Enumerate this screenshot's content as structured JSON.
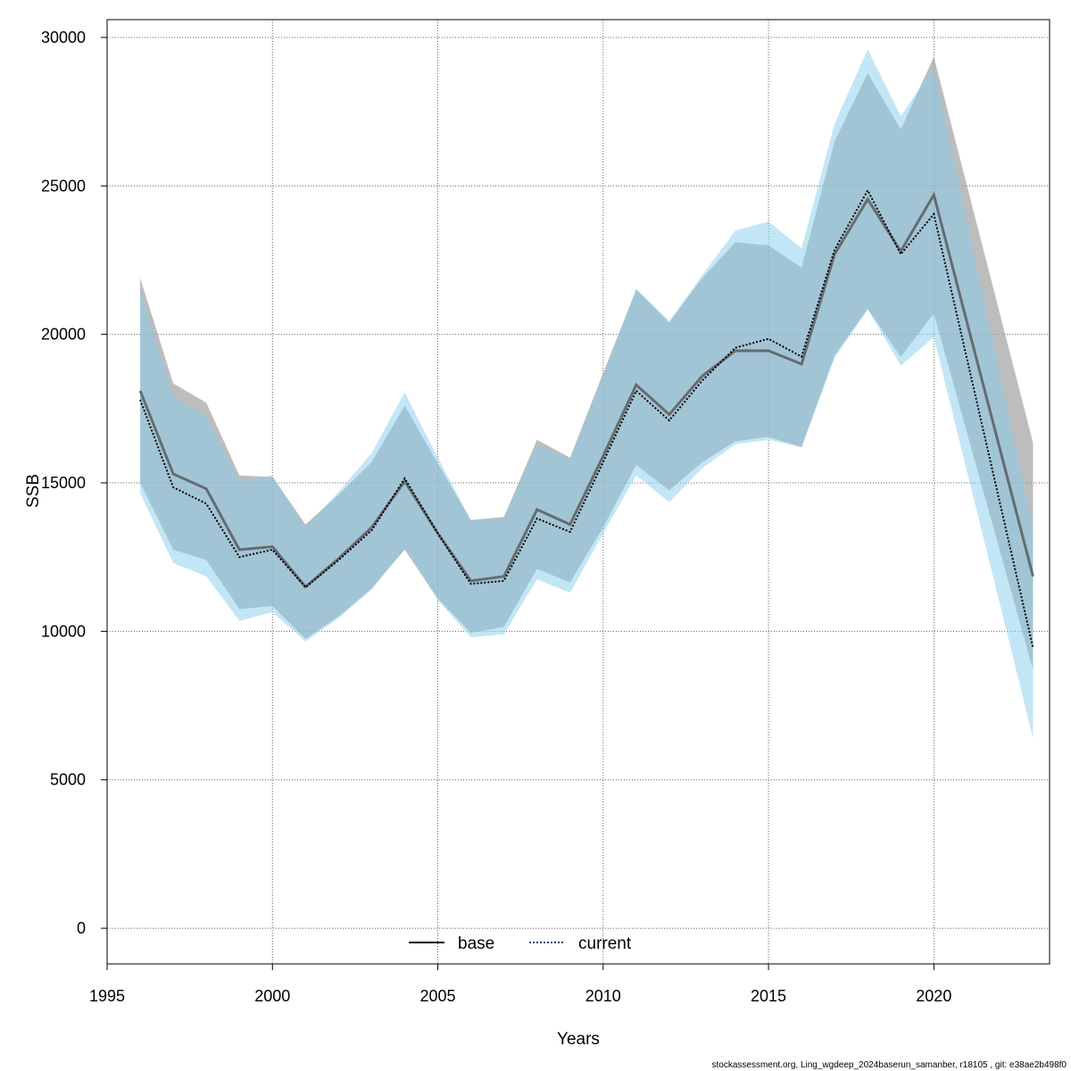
{
  "chart_data": {
    "type": "area",
    "xlabel": "Years",
    "ylabel": "SSB",
    "xlim": [
      1995,
      2023.5
    ],
    "ylim": [
      -1200,
      30600
    ],
    "x_ticks": [
      "1995",
      "2000",
      "2005",
      "2010",
      "2015",
      "2020"
    ],
    "y_ticks": [
      "0",
      "5000",
      "10000",
      "15000",
      "20000",
      "25000",
      "30000"
    ],
    "grid": true,
    "legend_position": "bottom-center",
    "x": [
      1996,
      1997,
      1998,
      1999,
      2000,
      2001,
      2002,
      2003,
      2004,
      2005,
      2006,
      2007,
      2008,
      2009,
      2010,
      2011,
      2012,
      2013,
      2014,
      2015,
      2016,
      2017,
      2018,
      2019,
      2020,
      2023
    ],
    "series": [
      {
        "name": "base",
        "line_style": "solid",
        "band_color": "#9a9a9a",
        "line_color": "#555555",
        "values": [
          18100,
          15300,
          14800,
          12750,
          12850,
          11500,
          12450,
          13500,
          15050,
          13300,
          11700,
          11850,
          14100,
          13600,
          15900,
          18300,
          17300,
          18600,
          19450,
          19450,
          19000,
          22700,
          24550,
          22800,
          24700,
          11850
        ],
        "upper": [
          21900,
          18350,
          17700,
          15250,
          15200,
          13600,
          14600,
          15700,
          17600,
          15650,
          13750,
          13850,
          16450,
          15850,
          18700,
          21500,
          20400,
          21900,
          23100,
          23000,
          22250,
          26500,
          28800,
          26900,
          29350,
          16350
        ],
        "lower": [
          15000,
          12750,
          12400,
          10750,
          10850,
          9750,
          10500,
          11450,
          12750,
          11100,
          9950,
          10150,
          12100,
          11650,
          13500,
          15600,
          14750,
          15700,
          16400,
          16550,
          16200,
          19300,
          20850,
          19250,
          20700,
          8700
        ]
      },
      {
        "name": "current",
        "line_style": "dotted",
        "band_color": "#87cdee",
        "line_color": "#000000",
        "values": [
          17800,
          14850,
          14300,
          12500,
          12750,
          11480,
          12400,
          13400,
          15150,
          13300,
          11600,
          11700,
          13800,
          13350,
          15700,
          18100,
          17100,
          18450,
          19550,
          19850,
          19250,
          22850,
          24850,
          22700,
          24050,
          9450
        ],
        "upper": [
          21500,
          17900,
          17250,
          15050,
          15250,
          13500,
          14700,
          16000,
          18050,
          15850,
          13750,
          13800,
          16300,
          15800,
          18600,
          21550,
          20450,
          22000,
          23500,
          23800,
          22900,
          27100,
          29600,
          27350,
          29000,
          13500
        ],
        "lower": [
          14650,
          12300,
          11850,
          10350,
          10650,
          9650,
          10450,
          11400,
          12800,
          11050,
          9800,
          9900,
          11750,
          11300,
          13300,
          15250,
          14350,
          15500,
          16300,
          16450,
          16200,
          19200,
          20850,
          18950,
          19900,
          6400
        ]
      }
    ]
  },
  "footnote": "stockassessment.org, Ling_wgdeep_2024baserun_samanber, r18105 , git: e38ae2b498f0"
}
